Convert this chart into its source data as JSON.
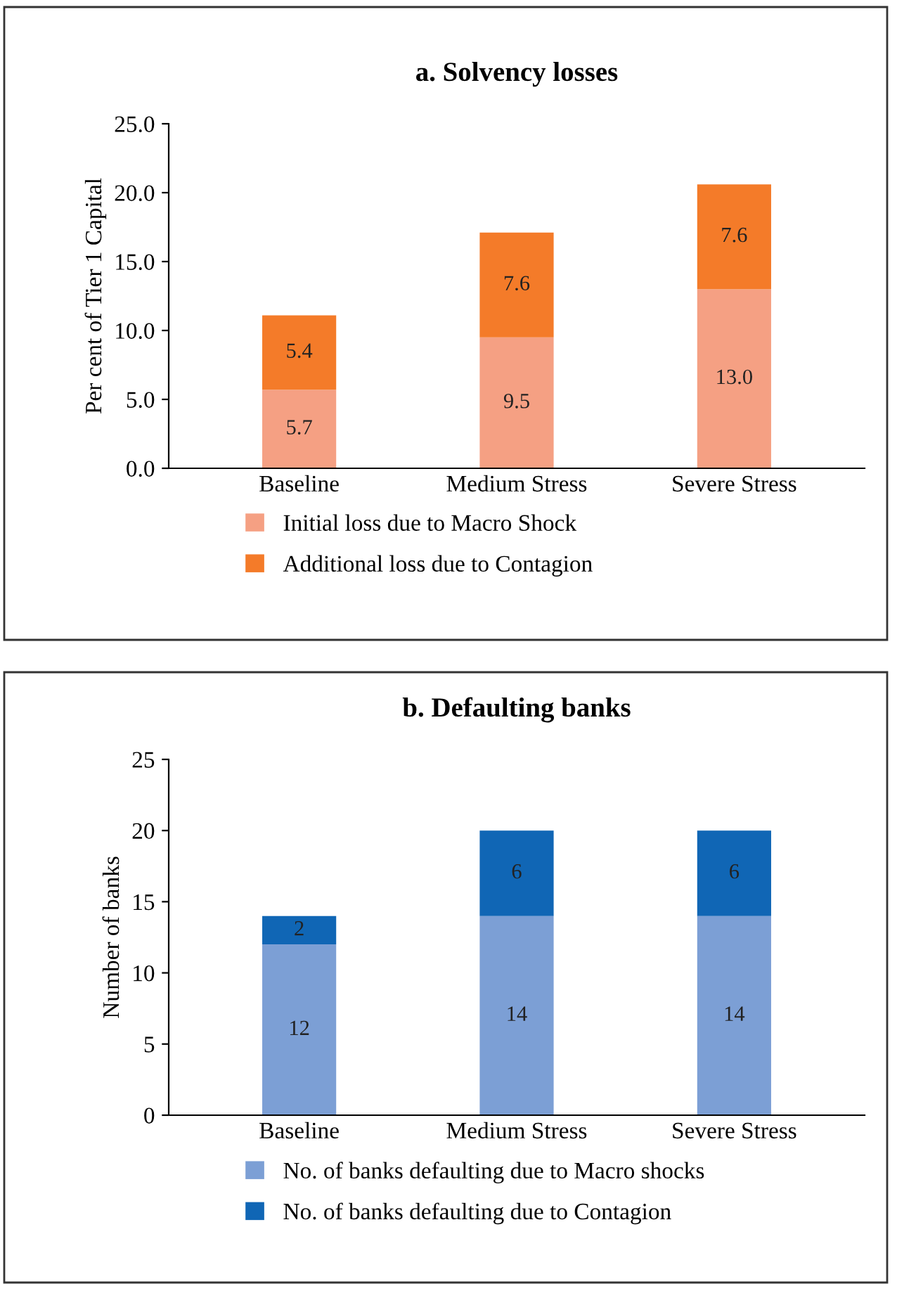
{
  "chart_data": [
    {
      "type": "bar",
      "title": "a. Solvency losses",
      "ylabel": "Per cent of Tier 1 Capital",
      "categories": [
        "Baseline",
        "Medium Stress",
        "Severe Stress"
      ],
      "stacked": true,
      "legend": "bottom",
      "grid": false,
      "ylim": [
        0,
        25
      ],
      "yticks": [
        {
          "value": 0,
          "label": "0.0"
        },
        {
          "value": 5,
          "label": "5.0"
        },
        {
          "value": 10,
          "label": "10.0"
        },
        {
          "value": 15,
          "label": "15.0"
        },
        {
          "value": 20,
          "label": "20.0"
        },
        {
          "value": 25,
          "label": "25.0"
        }
      ],
      "series": [
        {
          "name": "Initial loss due to Macro Shock",
          "color": "#f5a083",
          "values": [
            5.7,
            9.5,
            13.0
          ],
          "value_labels": [
            "5.7",
            "9.5",
            "13.0"
          ]
        },
        {
          "name": "Additional loss due to Contagion",
          "color": "#f47b29",
          "values": [
            5.4,
            7.6,
            7.6
          ],
          "value_labels": [
            "5.4",
            "7.6",
            "7.6"
          ]
        }
      ]
    },
    {
      "type": "bar",
      "title": "b. Defaulting banks",
      "ylabel": "Number of banks",
      "categories": [
        "Baseline",
        "Medium Stress",
        "Severe Stress"
      ],
      "stacked": true,
      "legend": "bottom",
      "grid": false,
      "ylim": [
        0,
        25
      ],
      "yticks": [
        0,
        5,
        10,
        15,
        20,
        25
      ],
      "series": [
        {
          "name": "No. of banks defaulting due to Macro shocks",
          "color": "#7c9fd5",
          "values": [
            12,
            14,
            14
          ],
          "value_labels": [
            "12",
            "14",
            "14"
          ]
        },
        {
          "name": "No. of banks defaulting due to Contagion",
          "color": "#1066b5",
          "values": [
            2,
            6,
            6
          ],
          "value_labels": [
            "2",
            "6",
            "6"
          ]
        }
      ]
    }
  ]
}
